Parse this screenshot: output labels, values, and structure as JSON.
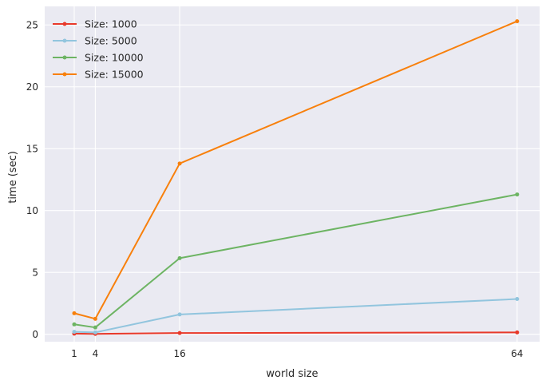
{
  "chart_data": {
    "type": "line",
    "title": "",
    "xlabel": "world size",
    "ylabel": "time (sec)",
    "x": [
      1,
      4,
      16,
      64
    ],
    "xticks": [
      1,
      4,
      16,
      64
    ],
    "yticks": [
      0,
      5,
      10,
      15,
      20,
      25
    ],
    "xlim": [
      -3.2,
      67.2
    ],
    "ylim": [
      -0.6,
      26.5
    ],
    "grid": true,
    "legend_position": "top-left",
    "series": [
      {
        "name": "Size: 1000",
        "color": "#e8392a",
        "values": [
          0.05,
          0.03,
          0.1,
          0.15
        ]
      },
      {
        "name": "Size: 5000",
        "color": "#92c5de",
        "values": [
          0.2,
          0.15,
          1.6,
          2.85
        ]
      },
      {
        "name": "Size: 10000",
        "color": "#6db463",
        "values": [
          0.8,
          0.55,
          6.15,
          11.3
        ]
      },
      {
        "name": "Size: 15000",
        "color": "#f8800c",
        "values": [
          1.7,
          1.25,
          13.8,
          25.3
        ]
      }
    ]
  }
}
